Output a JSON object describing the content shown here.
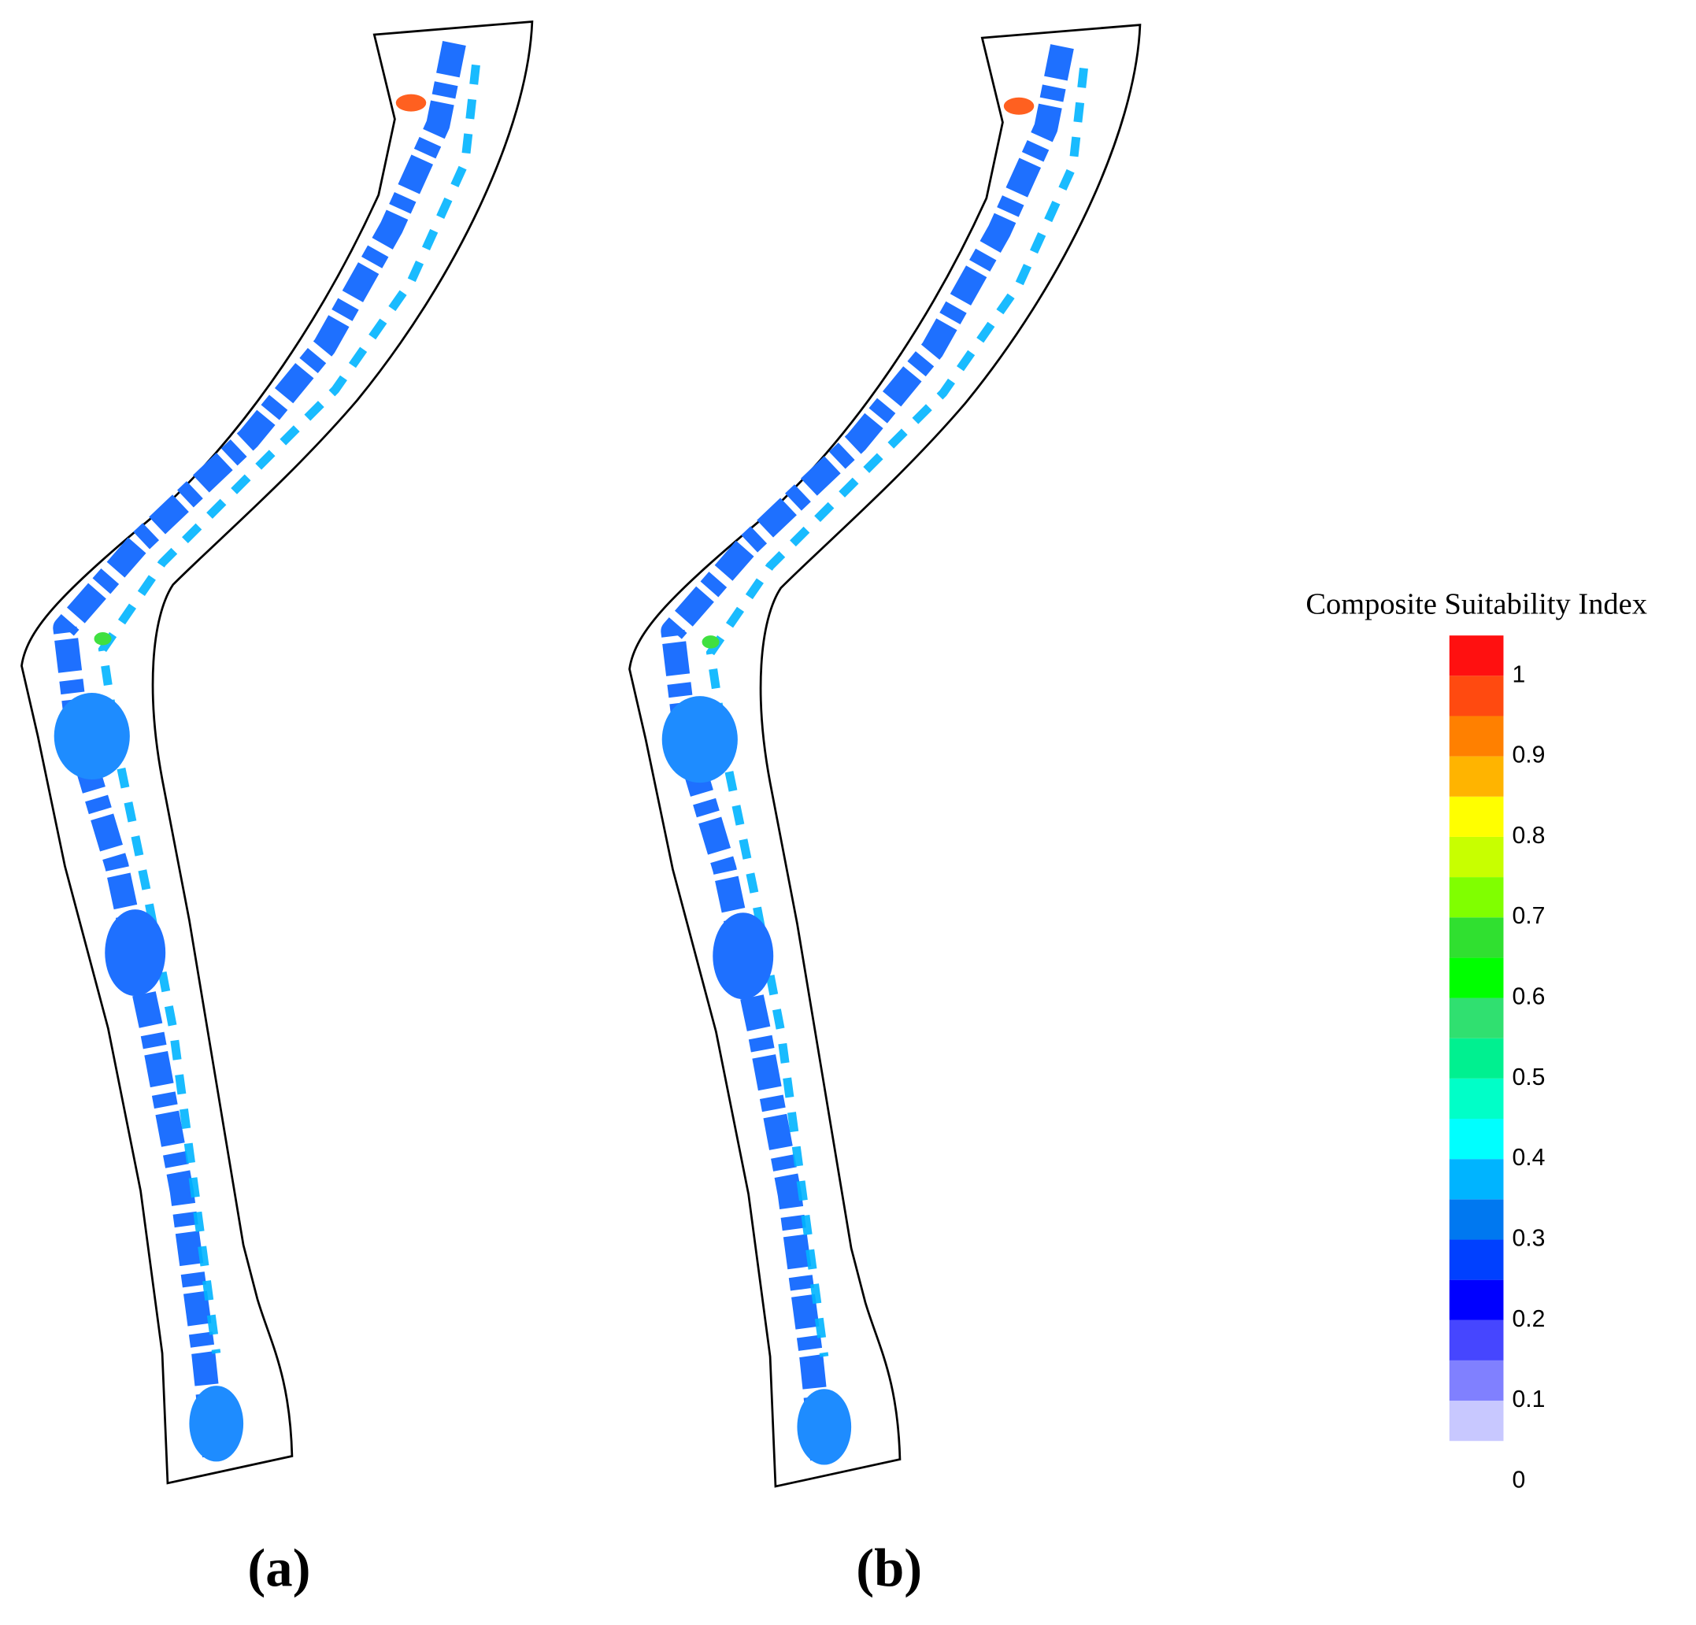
{
  "panels": [
    {
      "label": "(a)"
    },
    {
      "label": "(b)"
    }
  ],
  "legend": {
    "title": "Composite Suitability Index",
    "range": [
      0.05,
      1.05
    ],
    "ticks": [
      0,
      0.1,
      0.2,
      0.3,
      0.4,
      0.5,
      0.6,
      0.7,
      0.8,
      0.9,
      1
    ],
    "colors": [
      "#c8c8ff",
      "#8080ff",
      "#4646ff",
      "#0000ff",
      "#0040ff",
      "#0078f0",
      "#00b4ff",
      "#00ffff",
      "#00ffc8",
      "#00f090",
      "#30e070",
      "#00ff00",
      "#30e030",
      "#80ff00",
      "#c8ff00",
      "#ffff00",
      "#ffb400",
      "#ff8000",
      "#ff4a10",
      "#ff1010"
    ]
  }
}
